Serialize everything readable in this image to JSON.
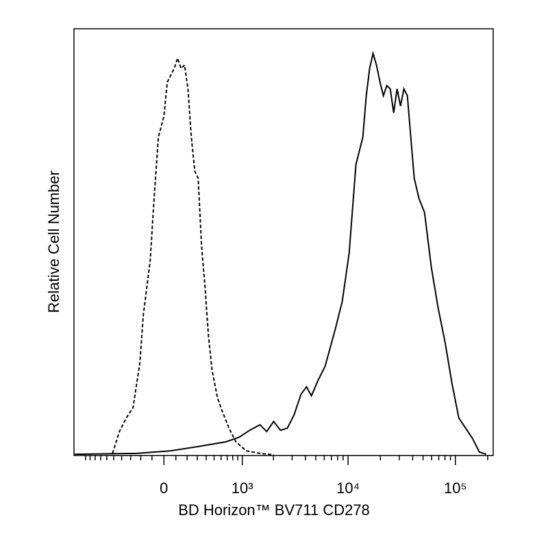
{
  "chart_data": {
    "type": "line",
    "xlabel": "BD Horizon™ BV711 CD278",
    "ylabel": "Relative Cell Number",
    "xscale": "biexponential",
    "xlim": [
      -1300,
      225000
    ],
    "ylim": [
      0,
      100
    ],
    "xticks": [
      0,
      {
        "value": 1000,
        "label": "10³"
      },
      {
        "value": 10000,
        "label": "10⁴"
      },
      {
        "value": 100000,
        "label": "10⁵"
      }
    ],
    "xminor_ticks": [
      -1000,
      -900,
      -800,
      -700,
      -600,
      -500,
      -400,
      -300,
      -200,
      -100,
      100,
      200,
      300,
      400,
      500,
      600,
      700,
      800,
      900,
      2000,
      3000,
      4000,
      5000,
      6000,
      7000,
      8000,
      9000,
      20000,
      30000,
      40000,
      50000,
      60000,
      70000,
      80000,
      90000,
      200000
    ],
    "series": [
      {
        "color": "#000000",
        "line_style": "dashed",
        "x": [
          -518,
          -427,
          -347,
          -275,
          -208,
          -176,
          -115,
          -86,
          -46,
          0,
          28,
          57,
          86,
          115,
          145,
          176,
          208,
          240,
          275,
          310,
          347,
          387,
          427,
          472,
          547,
          618,
          731,
          862,
          1095,
          1488,
          2011
        ],
        "values": [
          0.5,
          5.6,
          8.8,
          11.2,
          21.7,
          32.9,
          45.7,
          58.6,
          74.6,
          79.5,
          87.5,
          89.1,
          90.7,
          93.1,
          90.7,
          91.5,
          85.9,
          74.6,
          66.6,
          65.0,
          49.0,
          39.3,
          28.1,
          20.1,
          13.6,
          10.4,
          6.4,
          3.2,
          1.1,
          0.5,
          0.2
        ]
      },
      {
        "color": "#000000",
        "line_style": "solid",
        "x": [
          -1278,
          -240,
          57,
          310,
          674,
          933,
          1181,
          1488,
          1729,
          2011,
          2335,
          2710,
          3142,
          3644,
          4103,
          4551,
          5277,
          6114,
          7620,
          8835,
          10248,
          11850,
          13742,
          14784,
          15903,
          17100,
          18412,
          19840,
          21346,
          22967,
          24743,
          26634,
          28641,
          30841,
          33157,
          35705,
          38446,
          41379,
          45857,
          51570,
          59753,
          69210,
          80211,
          92910,
          107694,
          124678,
          144364,
          167138,
          193772
        ],
        "values": [
          0.3,
          0.5,
          1.1,
          2.1,
          3.2,
          4.3,
          5.9,
          7.2,
          5.6,
          8.0,
          5.9,
          6.4,
          9.6,
          14.4,
          16.1,
          14.0,
          17.7,
          20.9,
          29.7,
          36.1,
          47.4,
          68.2,
          74.6,
          84.3,
          90.7,
          94.2,
          91.5,
          87.5,
          84.3,
          86.7,
          85.9,
          80.3,
          85.9,
          81.9,
          85.9,
          84.3,
          74.6,
          65.0,
          60.2,
          57.0,
          44.1,
          34.5,
          26.5,
          16.9,
          8.8,
          6.4,
          4.0,
          0.8,
          0.3
        ]
      }
    ]
  }
}
